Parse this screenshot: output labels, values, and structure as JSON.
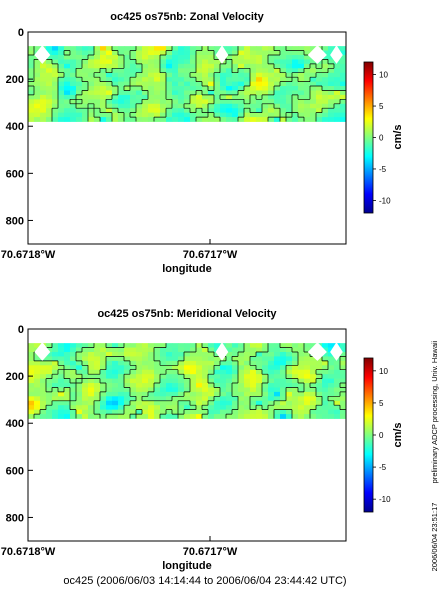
{
  "chart_data": [
    {
      "type": "heatmap",
      "title": "oc425 os75nb: Zonal Velocity",
      "xlabel": "longitude",
      "ylabel": "",
      "x_tick_labels": [
        "70.6718°W",
        "70.6717°W"
      ],
      "y_ticks": [
        0,
        200,
        400,
        600,
        800
      ],
      "ylim": [
        900,
        0
      ],
      "data_depth_range": [
        60,
        380
      ],
      "colorbar": {
        "label": "cm/s",
        "range": [
          -12,
          12
        ],
        "ticks": [
          -10,
          -5,
          0,
          5,
          10
        ],
        "colormap": "jet"
      },
      "contours": true,
      "seed": 7
    },
    {
      "type": "heatmap",
      "title": "oc425 os75nb: Meridional Velocity",
      "xlabel": "longitude",
      "ylabel": "",
      "x_tick_labels": [
        "70.6718°W",
        "70.6717°W"
      ],
      "y_ticks": [
        0,
        200,
        400,
        600,
        800
      ],
      "ylim": [
        900,
        0
      ],
      "data_depth_range": [
        60,
        380
      ],
      "colorbar": {
        "label": "cm/s",
        "range": [
          -12,
          12
        ],
        "ticks": [
          -10,
          -5,
          0,
          5,
          10
        ],
        "colormap": "jet"
      },
      "contours": true,
      "seed": 23
    }
  ],
  "footer": "oc425 (2006/06/03 14:14:44 to 2006/06/04 23:44:42 UTC)",
  "side_note": "preliminary ADCP processing,  Univ. Hawaii",
  "side_stamp": "2006/06/04 23:51:17"
}
